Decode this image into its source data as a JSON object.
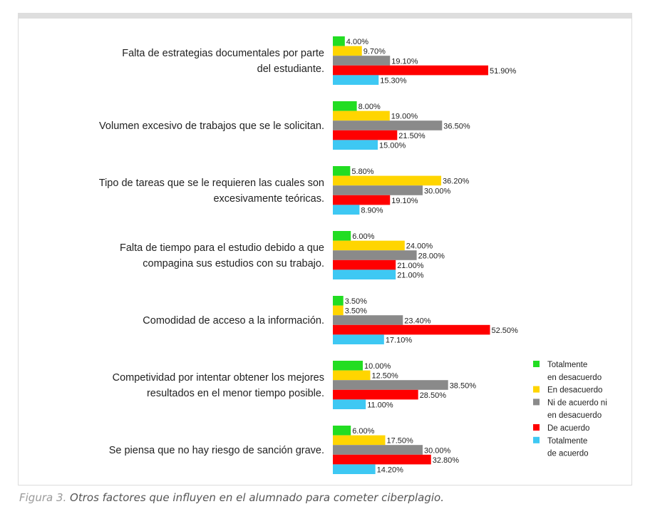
{
  "colors": {
    "totalmente_en_desacuerdo": "#22dd22",
    "en_desacuerdo": "#ffd500",
    "ni_de_acuerdo": "#8a8a8a",
    "de_acuerdo": "#ff0000",
    "totalmente_de_acuerdo": "#3ec8f3"
  },
  "caption": {
    "lead": "Figura 3.",
    "text": " Otros factores que influyen en el alumnado para cometer ciberplagio."
  },
  "chart_data": {
    "type": "bar",
    "orientation": "horizontal",
    "value_suffix": "%",
    "xlim": [
      0,
      60
    ],
    "grid": false,
    "legend_position": "right",
    "categories": [
      [
        "Falta de estrategias documentales por parte",
        "del estudiante."
      ],
      [
        "Volumen excesivo de trabajos que se le solicitan."
      ],
      [
        "Tipo de tareas que se le requieren las cuales son",
        "excesivamente teóricas."
      ],
      [
        "Falta de tiempo para el estudio debido a que",
        "compagina sus estudios con su trabajo."
      ],
      [
        "Comodidad de acceso a la información."
      ],
      [
        "Competividad por intentar obtener los mejores",
        "resultados en el menor tiempo posible."
      ],
      [
        "Se piensa que no hay riesgo de sanción grave."
      ]
    ],
    "series": [
      {
        "name": [
          "Totalmente",
          "en desacuerdo"
        ],
        "color": "#22dd22",
        "values": [
          4.0,
          8.0,
          5.8,
          6.0,
          3.5,
          10.0,
          6.0
        ],
        "labels": [
          "4.00%",
          "8.00%",
          "5.80%",
          "6.00%",
          "3.50%",
          "10.00%",
          "6.00%"
        ]
      },
      {
        "name": [
          "En desacuerdo"
        ],
        "color": "#ffd500",
        "values": [
          9.7,
          19.0,
          36.2,
          24.0,
          3.5,
          12.5,
          17.5
        ],
        "labels": [
          "9.70%",
          "19.00%",
          "36.20%",
          "24.00%",
          "3.50%",
          "12.50%",
          "17.50%"
        ]
      },
      {
        "name": [
          "Ni de acuerdo ni",
          "en desacuerdo"
        ],
        "color": "#8a8a8a",
        "values": [
          19.1,
          36.5,
          30.0,
          28.0,
          23.4,
          38.5,
          30.0
        ],
        "labels": [
          "19.10%",
          "36.50%",
          "30.00%",
          "28.00%",
          "23.40%",
          "38.50%",
          "30.00%"
        ]
      },
      {
        "name": [
          "De acuerdo"
        ],
        "color": "#ff0000",
        "values": [
          51.9,
          21.5,
          19.1,
          21.0,
          52.5,
          28.5,
          32.8
        ],
        "labels": [
          "51.90%",
          "21.50%",
          "19.10%",
          "21.00%",
          "52.50%",
          "28.50%",
          "32.80%"
        ]
      },
      {
        "name": [
          "Totalmente",
          "de acuerdo"
        ],
        "color": "#3ec8f3",
        "values": [
          15.3,
          15.0,
          8.9,
          21.0,
          17.1,
          11.0,
          14.2
        ],
        "labels": [
          "15.30%",
          "15.00%",
          "8.90%",
          "21.00%",
          "17.10%",
          "11.00%",
          "14.20%"
        ]
      }
    ]
  }
}
